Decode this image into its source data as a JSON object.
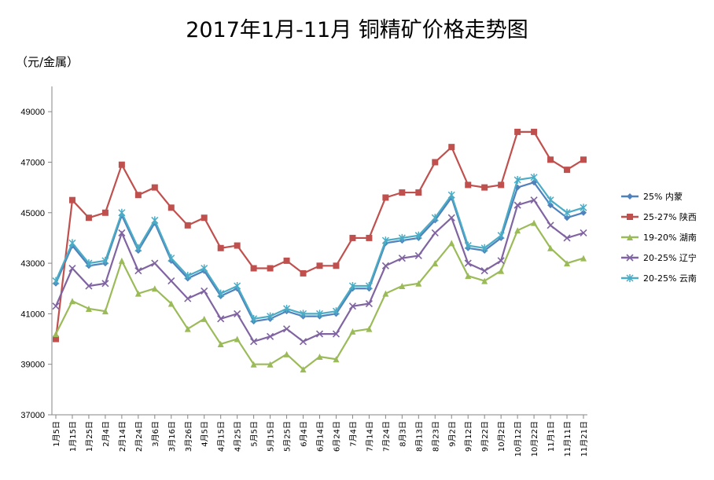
{
  "chart_data": {
    "type": "line",
    "title": "2017年1月-11月 铜精矿价格走势图",
    "ylabel": "（元/金属）",
    "xlabel": "",
    "ylim": [
      37000,
      50000
    ],
    "yticks": [
      37000,
      39000,
      41000,
      43000,
      45000,
      47000,
      49000
    ],
    "grid": false,
    "legend_position": "right",
    "categories": [
      "1月5日",
      "1月15日",
      "1月25日",
      "2月4日",
      "2月14日",
      "2月24日",
      "3月6日",
      "3月16日",
      "3月26日",
      "4月5日",
      "4月15日",
      "4月25日",
      "5月5日",
      "5月15日",
      "5月25日",
      "6月4日",
      "6月14日",
      "6月24日",
      "7月4日",
      "7月14日",
      "7月24日",
      "8月3日",
      "8月13日",
      "8月23日",
      "9月2日",
      "9月12日",
      "9月22日",
      "10月2日",
      "10月12日",
      "10月22日",
      "11月1日",
      "11月11日",
      "11月21日"
    ],
    "series": [
      {
        "name": "25% 内蒙",
        "color": "#4F81BD",
        "marker": "diamond",
        "values": [
          42200,
          43700,
          42900,
          43000,
          44900,
          43500,
          44600,
          43100,
          42400,
          42700,
          41700,
          42000,
          40700,
          40800,
          41100,
          40900,
          40900,
          41000,
          42000,
          42000,
          43800,
          43900,
          44000,
          44700,
          45600,
          43600,
          43500,
          44000,
          46000,
          46200,
          45300,
          44800,
          45000
        ]
      },
      {
        "name": "25-27% 陕西",
        "color": "#C0504D",
        "marker": "square",
        "values": [
          40000,
          45500,
          44800,
          45000,
          46900,
          45700,
          46000,
          45200,
          44500,
          44800,
          43600,
          43700,
          42800,
          42800,
          43100,
          42600,
          42900,
          42900,
          44000,
          44000,
          45600,
          45800,
          45800,
          47000,
          47600,
          46100,
          46000,
          46100,
          48200,
          48200,
          47100,
          46700,
          47100
        ]
      },
      {
        "name": "19-20% 湖南",
        "color": "#9BBB59",
        "marker": "triangle",
        "values": [
          40200,
          41500,
          41200,
          41100,
          43100,
          41800,
          42000,
          41400,
          40400,
          40800,
          39800,
          40000,
          39000,
          39000,
          39400,
          38800,
          39300,
          39200,
          40300,
          40400,
          41800,
          42100,
          42200,
          43000,
          43800,
          42500,
          42300,
          42700,
          44300,
          44600,
          43600,
          43000,
          43200
        ]
      },
      {
        "name": "20-25% 辽宁",
        "color": "#8064A2",
        "marker": "x",
        "values": [
          41300,
          42800,
          42100,
          42200,
          44200,
          42700,
          43000,
          42300,
          41600,
          41900,
          40800,
          41000,
          39900,
          40100,
          40400,
          39900,
          40200,
          40200,
          41300,
          41400,
          42900,
          43200,
          43300,
          44200,
          44800,
          43000,
          42700,
          43100,
          45300,
          45500,
          44500,
          44000,
          44200
        ]
      },
      {
        "name": "20-25% 云南",
        "color": "#4BACC6",
        "marker": "star",
        "values": [
          42300,
          43800,
          43000,
          43100,
          45000,
          43600,
          44700,
          43200,
          42500,
          42800,
          41800,
          42100,
          40800,
          40900,
          41200,
          41000,
          41000,
          41100,
          42100,
          42100,
          43900,
          44000,
          44100,
          44800,
          45700,
          43700,
          43600,
          44100,
          46300,
          46400,
          45500,
          45000,
          45200
        ]
      }
    ]
  }
}
